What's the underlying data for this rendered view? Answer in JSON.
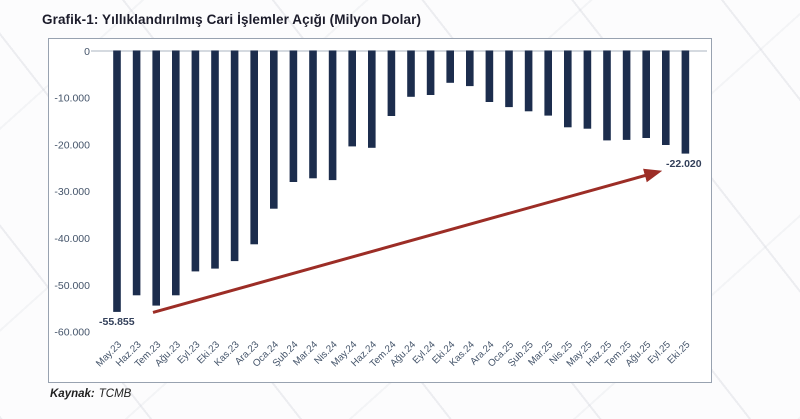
{
  "page": {
    "title": "Grafik-1: Yıllıklandırılmış Cari İşlemler Açığı (Milyon Dolar)",
    "source_label": "Kaynak:",
    "source_value": "TCMB"
  },
  "chart_data": {
    "type": "bar",
    "title": "Grafik-1: Yıllıklandırılmış Cari İşlemler Açığı (Milyon Dolar)",
    "xlabel": "",
    "ylabel": "",
    "ylim": [
      -60000,
      0
    ],
    "grid": false,
    "legend": false,
    "bar_color": "#1c2d4d",
    "axis_text_color": "#44546a",
    "categories": [
      "May.23",
      "Haz.23",
      "Tem.23",
      "Ağu.23",
      "Eyl.23",
      "Eki.23",
      "Kas.23",
      "Ara.23",
      "Oca.24",
      "Şub.24",
      "Mar.24",
      "Nis.24",
      "May.24",
      "Haz.24",
      "Tem.24",
      "Ağu.24",
      "Eyl.24",
      "Eki.24",
      "Kas.24",
      "Ara.24",
      "Oca.25",
      "Şub.25",
      "Mar.25",
      "Nis.25",
      "May.25",
      "Haz.25",
      "Tem.25",
      "Ağu.25",
      "Eyl.25",
      "Eki.25"
    ],
    "values": [
      -55855,
      -52300,
      -54500,
      -52300,
      -47200,
      -46600,
      -45000,
      -41400,
      -33800,
      -28100,
      -27300,
      -27700,
      -20500,
      -20800,
      -14000,
      -9900,
      -9500,
      -6900,
      -7600,
      -11000,
      -12100,
      -13000,
      -13900,
      -16400,
      -16700,
      -19200,
      -19100,
      -18700,
      -20200,
      -22020
    ],
    "y_ticks": [
      0,
      -10000,
      -20000,
      -30000,
      -40000,
      -50000,
      -60000
    ],
    "y_tick_labels": [
      "0",
      "-10.000",
      "-20.000",
      "-30.000",
      "-40.000",
      "-50.000",
      "-60.000"
    ],
    "annotations": {
      "first_label": {
        "text": "-55.855",
        "category": "May.23",
        "value": -55855
      },
      "last_label": {
        "text": "-22.020",
        "category": "Eki.25",
        "value": -22020
      },
      "trend_arrow": {
        "color": "#9c2d26",
        "from_category": "May.23",
        "to_category": "Eki.25"
      }
    }
  }
}
